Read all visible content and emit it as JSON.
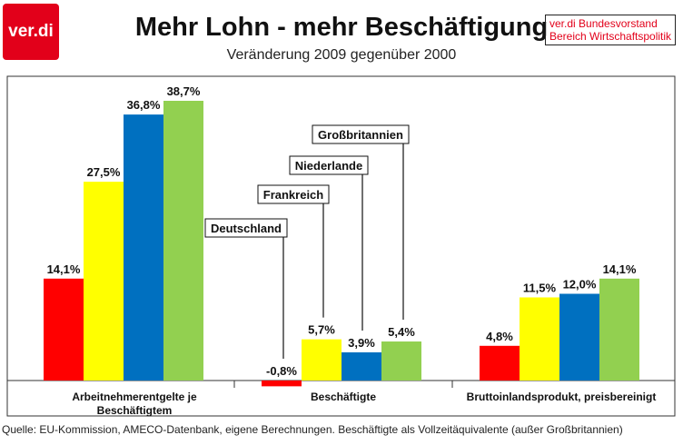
{
  "logo_text": "ver.di",
  "publisher": [
    "ver.di Bundesvorstand",
    "Bereich Wirtschaftspolitik"
  ],
  "source": "Quelle: EU-Kommission, AMECO-Datenbank, eigene Berechnungen. Beschäftigte als Vollzeitäquivalente (außer Großbritannien)",
  "colors": {
    "brand": "#e2001a",
    "Deutschland": "#ff0000",
    "Frankreich": "#ffff00",
    "Niederlande": "#0070c0",
    "Großbritannien": "#92d050"
  },
  "chart_data": {
    "type": "bar",
    "title": "Mehr Lohn - mehr Beschäftigung",
    "subtitle": "Veränderung 2009 gegenüber 2000",
    "categories": [
      [
        "Arbeitnehmerentgelte je",
        "Beschäftigtem"
      ],
      [
        "Beschäftigte"
      ],
      [
        "Bruttoinlandsprodukt, preisbereinigt"
      ]
    ],
    "series": [
      {
        "name": "Deutschland",
        "values": [
          14.1,
          -0.8,
          4.8
        ],
        "labels": [
          "14,1%",
          "-0,8%",
          "4,8%"
        ]
      },
      {
        "name": "Frankreich",
        "values": [
          27.5,
          5.7,
          11.5
        ],
        "labels": [
          "27,5%",
          "5,7%",
          "11,5%"
        ]
      },
      {
        "name": "Niederlande",
        "values": [
          36.8,
          3.9,
          12.0
        ],
        "labels": [
          "36,8%",
          "3,9%",
          "12,0%"
        ]
      },
      {
        "name": "Großbritannien",
        "values": [
          38.7,
          5.4,
          14.1
        ],
        "labels": [
          "38,7%",
          "5,4%",
          "14,1%"
        ]
      }
    ],
    "ylim": [
      -1.5,
      40
    ],
    "legend": "callouts on middle group",
    "grid": false
  }
}
